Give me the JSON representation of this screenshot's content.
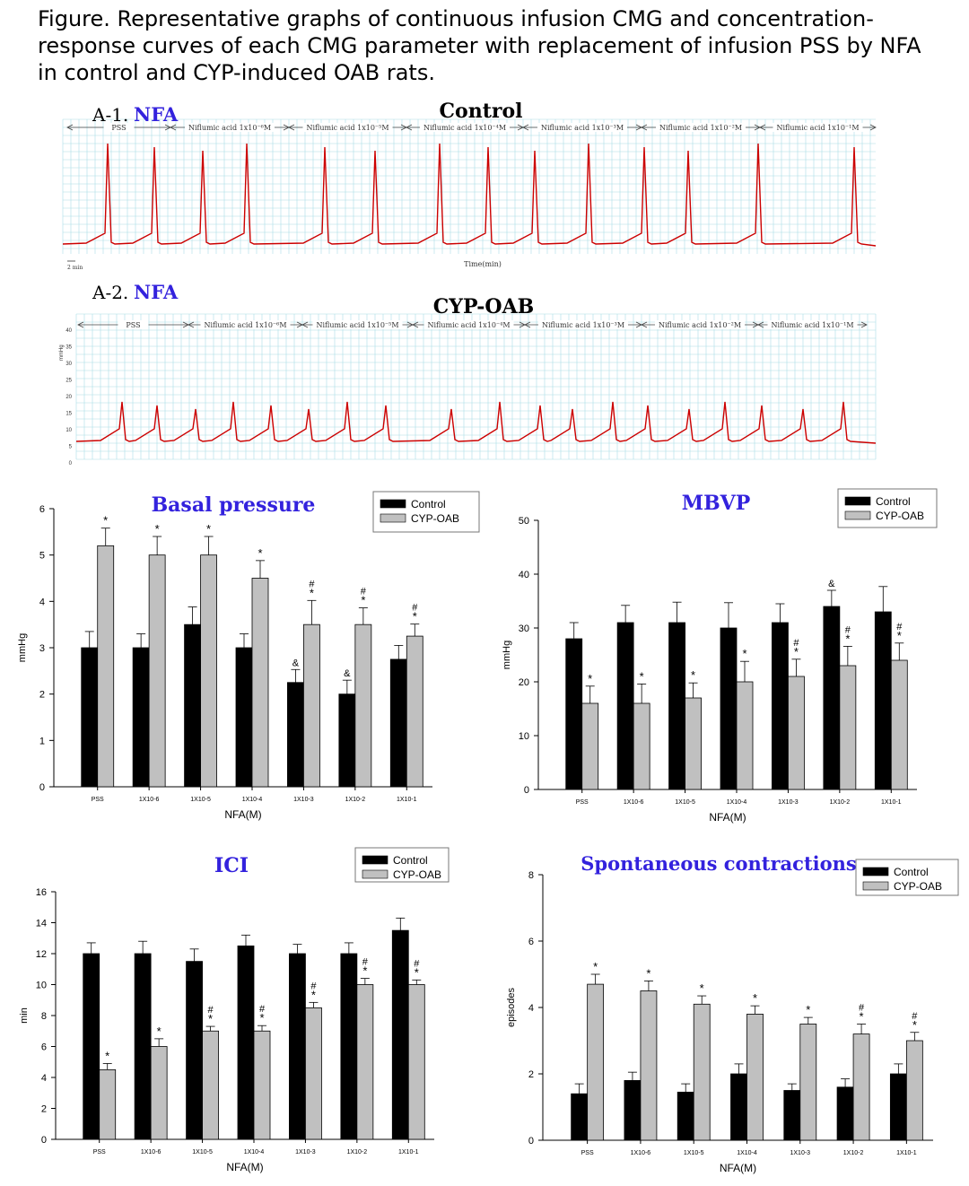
{
  "figure": {
    "caption": "Figure. Representative graphs of continuous infusion CMG and concentration-response curves of each CMG parameter with replacement of infusion PSS by NFA in control and CYP-induced OAB rats.",
    "trace_color": "#cc0000",
    "grid_color": "#a9dde6",
    "panels": [
      {
        "label": "A-1.",
        "drug": "NFA",
        "title": "Control",
        "x_label": "Time(min)",
        "scale_label": "2 min",
        "segments": [
          "PSS",
          "Niflumic acid 1x10⁻⁶M",
          "Niflumic acid 1x10⁻⁵M",
          "Niflumic acid 1x10⁻⁴M",
          "Niflumic acid 1x10⁻³M",
          "Niflumic acid 1x10⁻²M",
          "Niflumic acid 1x10⁻¹M"
        ]
      },
      {
        "label": "A-2.",
        "drug": "NFA",
        "title": "CYP-OAB",
        "y_label": "mmHg",
        "y_ticks": [
          "40",
          "35",
          "30",
          "25",
          "20",
          "15",
          "10",
          "5",
          "0"
        ],
        "segments": [
          "PSS",
          "Niflumic acid 1x10⁻⁶M",
          "Niflumic acid 1x10⁻⁵M",
          "Niflumic acid 1x10⁻⁴M",
          "Niflumic acid 1x10⁻³M",
          "Niflumic acid 1x10⁻²M",
          "Niflumic acid 1x10⁻¹M"
        ]
      }
    ]
  },
  "chart_data": [
    {
      "type": "bar",
      "title": "Basal pressure",
      "xlabel": "NFA(M)",
      "ylabel": "mmHg",
      "ylim": [
        0,
        6
      ],
      "yticks": [
        0,
        1,
        2,
        3,
        4,
        5,
        6
      ],
      "categories": [
        "PSS",
        "1X10-6",
        "1X10-5",
        "1X10-4",
        "1X10-3",
        "1X10-2",
        "1X10-1"
      ],
      "legend_position": "top-right",
      "series": [
        {
          "name": "Control",
          "color": "#000000",
          "values": [
            3.0,
            3.0,
            3.5,
            3.0,
            2.25,
            2.0,
            2.75
          ],
          "errors": [
            0.35,
            0.3,
            0.38,
            0.3,
            0.28,
            0.3,
            0.3
          ],
          "marks": [
            "",
            "",
            "",
            "",
            "&",
            "&",
            ""
          ]
        },
        {
          "name": "CYP-OAB",
          "color": "#c0c0c0",
          "values": [
            5.2,
            5.0,
            5.0,
            4.5,
            3.5,
            3.5,
            3.25
          ],
          "errors": [
            0.38,
            0.4,
            0.4,
            0.38,
            0.52,
            0.36,
            0.26
          ],
          "marks": [
            "*",
            "*",
            "*",
            "*",
            "#*",
            "#*",
            "#*"
          ]
        }
      ]
    },
    {
      "type": "bar",
      "title": "MBVP",
      "xlabel": "NFA(M)",
      "ylabel": "mmHg",
      "ylim": [
        0,
        50
      ],
      "yticks": [
        0,
        10,
        20,
        30,
        40,
        50
      ],
      "categories": [
        "PSS",
        "1X10-6",
        "1X10-5",
        "1X10-4",
        "1X10-3",
        "1X10-2",
        "1X10-1"
      ],
      "legend_position": "top-right",
      "series": [
        {
          "name": "Control",
          "color": "#000000",
          "values": [
            28,
            31,
            31,
            30,
            31,
            34,
            33
          ],
          "errors": [
            3,
            3.2,
            3.8,
            4.7,
            3.5,
            3,
            4.7
          ],
          "marks": [
            "",
            "",
            "",
            "",
            "",
            "&",
            ""
          ]
        },
        {
          "name": "CYP-OAB",
          "color": "#c0c0c0",
          "values": [
            16,
            16,
            17,
            20,
            21,
            23,
            24
          ],
          "errors": [
            3.2,
            3.6,
            2.8,
            3.8,
            3.2,
            3.6,
            3.2
          ],
          "marks": [
            "*",
            "*",
            "*",
            "*",
            "#*",
            "#*",
            "#*"
          ]
        }
      ]
    },
    {
      "type": "bar",
      "title": "ICI",
      "xlabel": "NFA(M)",
      "ylabel": "min",
      "ylim": [
        0,
        16
      ],
      "yticks": [
        0,
        2,
        4,
        6,
        8,
        10,
        12,
        14,
        16
      ],
      "categories": [
        "PSS",
        "1X10-6",
        "1X10-5",
        "1X10-4",
        "1X10-3",
        "1X10-2",
        "1X10-1"
      ],
      "legend_position": "top-right",
      "series": [
        {
          "name": "Control",
          "color": "#000000",
          "values": [
            12,
            12,
            11.5,
            12.5,
            12,
            12,
            13.5
          ],
          "errors": [
            0.7,
            0.8,
            0.8,
            0.7,
            0.6,
            0.7,
            0.8
          ],
          "marks": [
            "",
            "",
            "",
            "",
            "",
            "",
            ""
          ]
        },
        {
          "name": "CYP-OAB",
          "color": "#c0c0c0",
          "values": [
            4.5,
            6,
            7,
            7,
            8.5,
            10,
            10
          ],
          "errors": [
            0.4,
            0.5,
            0.3,
            0.35,
            0.35,
            0.4,
            0.3
          ],
          "marks": [
            "*",
            "*",
            "#*",
            "#*",
            "#*",
            "#*",
            "#*"
          ]
        }
      ]
    },
    {
      "type": "bar",
      "title": "Spontaneous contractions",
      "xlabel": "NFA(M)",
      "ylabel": "episodes",
      "ylim": [
        0,
        8
      ],
      "yticks": [
        0,
        2,
        4,
        6,
        8
      ],
      "categories": [
        "PSS",
        "1X10-6",
        "1X10-5",
        "1X10-4",
        "1X10-3",
        "1X10-2",
        "1X10-1"
      ],
      "legend_position": "top-right",
      "series": [
        {
          "name": "Control",
          "color": "#000000",
          "values": [
            1.4,
            1.8,
            1.45,
            2.0,
            1.5,
            1.6,
            2.0
          ],
          "errors": [
            0.3,
            0.25,
            0.25,
            0.3,
            0.2,
            0.25,
            0.3
          ],
          "marks": [
            "",
            "",
            "",
            "",
            "",
            "",
            ""
          ]
        },
        {
          "name": "CYP-OAB",
          "color": "#c0c0c0",
          "values": [
            4.7,
            4.5,
            4.1,
            3.8,
            3.5,
            3.2,
            3.0
          ],
          "errors": [
            0.3,
            0.3,
            0.25,
            0.25,
            0.2,
            0.3,
            0.25
          ],
          "marks": [
            "*",
            "*",
            "*",
            "*",
            "*",
            "#*",
            "#*"
          ]
        }
      ]
    }
  ]
}
